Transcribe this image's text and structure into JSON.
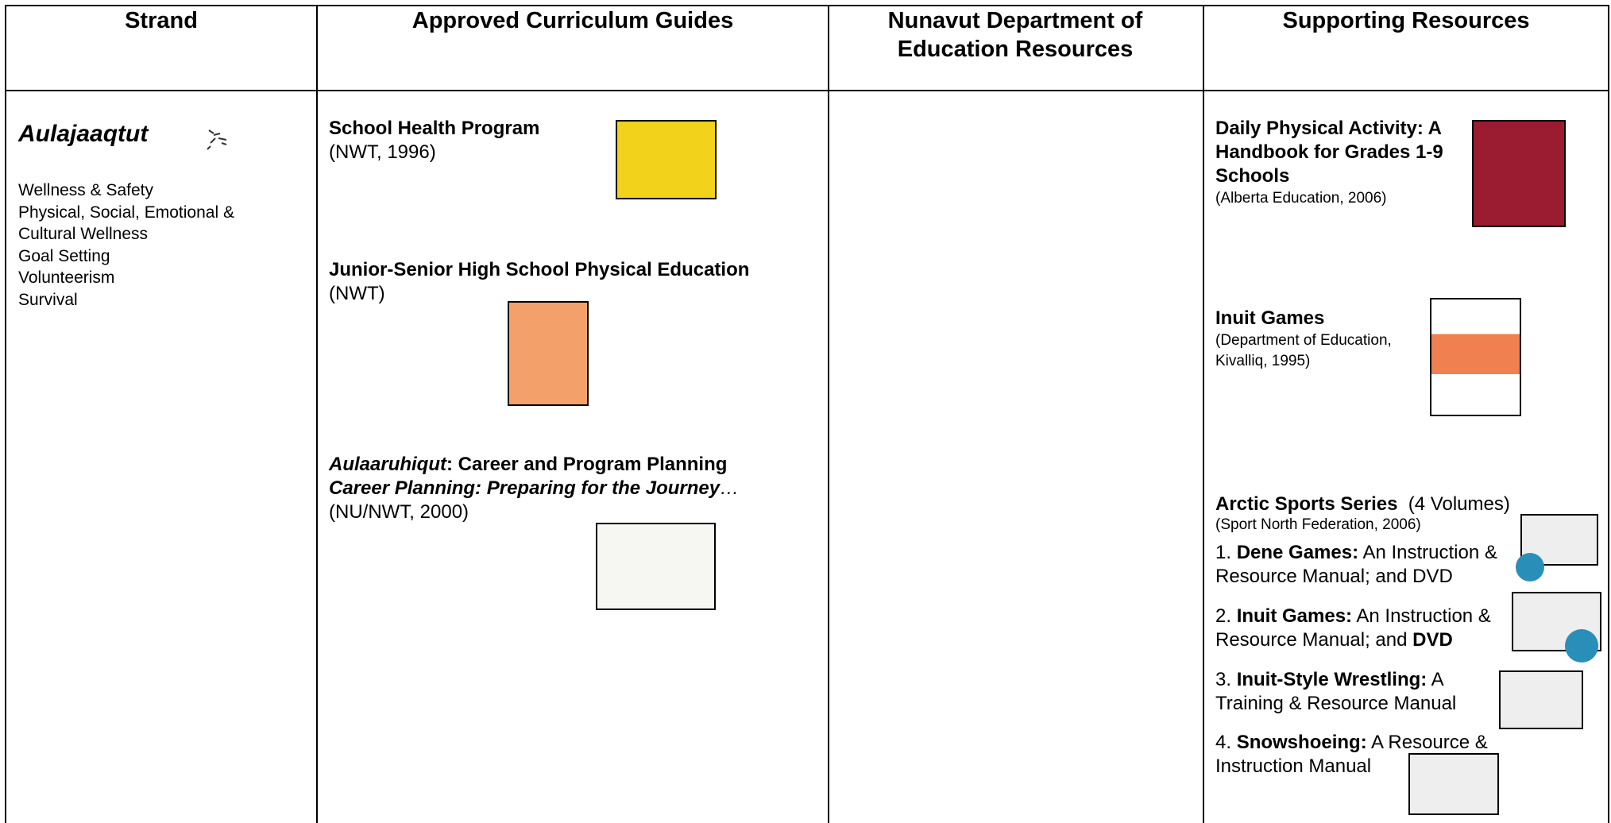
{
  "table": {
    "headers": [
      "Strand",
      "Approved Curriculum Guides",
      "Nunavut Department of Education Resources",
      "Supporting Resources"
    ],
    "strand": {
      "title": "Aulajaaqtut",
      "items": [
        "Wellness & Safety",
        "Physical, Social, Emotional & Cultural Wellness",
        "Goal Setting",
        "Volunteerism",
        "Survival"
      ]
    },
    "guides": [
      {
        "title": "School Health Program",
        "source": "(NWT, 1996)"
      },
      {
        "title": "Junior-Senior High School Physical Education",
        "source": "(NWT)"
      },
      {
        "title_italic": "Aulaaruhiqut",
        "title_rest": ": Career and Program Planning",
        "subtitle": "Career Planning: Preparing for the Journey",
        "ellipsis": "…",
        "source": "(NU/NWT, 2000)"
      }
    ],
    "resources": [
      {
        "title": "Daily Physical Activity: A Handbook for Grades 1-9 Schools",
        "source": "(Alberta Education, 2006)"
      },
      {
        "title": "Inuit Games",
        "source": "(Department of Education, Kivalliq, 1995)"
      },
      {
        "title": "Arctic Sports Series",
        "note": "(4 Volumes)",
        "source": "(Sport North Federation, 2006)",
        "volumes": [
          {
            "number": "1.",
            "title": "Dene Games:",
            "description": "An Instruction & Resource Manual; and DVD"
          },
          {
            "number": "2.",
            "title": "Inuit Games:",
            "description": "An Instruction & Resource Manual; and",
            "extra": "DVD"
          },
          {
            "number": "3.",
            "title": "Inuit-Style Wrestling:",
            "description": "A Training & Resource Manual"
          },
          {
            "number": "4.",
            "title": "Snowshoeing:",
            "description": "A Resource & Instruction Manual"
          }
        ]
      }
    ]
  }
}
